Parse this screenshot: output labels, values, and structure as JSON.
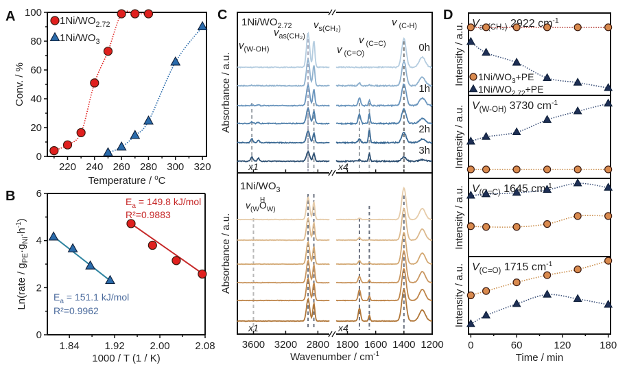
{
  "figure": {
    "panels": [
      "A",
      "B",
      "C",
      "D"
    ]
  },
  "chart_data": [
    {
      "panel": "A",
      "type": "scatter",
      "xlabel": "Temperature / °C",
      "ylabel": "Conv. / %",
      "xlim": [
        205,
        323
      ],
      "ylim": [
        0,
        100
      ],
      "xticks": [
        220,
        240,
        260,
        280,
        300,
        320
      ],
      "yticks": [
        0,
        20,
        40,
        60,
        80,
        100
      ],
      "legend_position": "top-left",
      "series": [
        {
          "name": "1Ni/WO2.72",
          "label_main": "1Ni/WO",
          "label_sub": "2.72",
          "marker": "circle",
          "color": "#e0201e",
          "line": "dotted",
          "x": [
            210,
            220,
            230,
            240,
            250,
            260,
            270,
            280
          ],
          "y": [
            4,
            8,
            16.5,
            51,
            73,
            99,
            99,
            99
          ]
        },
        {
          "name": "1Ni/WO3",
          "label_main": "1Ni/WO",
          "label_sub": "3",
          "marker": "triangle",
          "color": "#2a6bab",
          "line": "dotted",
          "x": [
            250,
            260,
            270,
            280,
            300,
            320
          ],
          "y": [
            2.5,
            6.5,
            14.5,
            24.5,
            65.5,
            90
          ]
        }
      ]
    },
    {
      "panel": "B",
      "type": "scatter",
      "xlabel": "1000 / T (1 / K)",
      "ylabel": "Ln(rate / gPE·gNi·h-1)",
      "xlim": [
        1.801,
        2.08
      ],
      "ylim": [
        0,
        6
      ],
      "xticks": [
        1.84,
        1.92,
        2.0,
        2.08
      ],
      "xticklabels": [
        "1.84",
        "1.92",
        "2.00",
        "2.08"
      ],
      "yticks": [
        0,
        2,
        4,
        6
      ],
      "series": [
        {
          "name": "1Ni/WO3",
          "marker": "triangle",
          "color": "#2a6bab",
          "line_color": "#2f84a0",
          "x": [
            1.812,
            1.846,
            1.877,
            1.912
          ],
          "y": [
            4.15,
            3.65,
            2.92,
            2.3
          ],
          "fit": {
            "x": [
              1.812,
              1.912
            ],
            "y": [
              4.17,
              2.3
            ]
          },
          "annotation": {
            "Ea": "E",
            "Ea_sub": "a",
            "Ea_value": " = 151.1 kJ/mol",
            "R2": "R²=0.9962",
            "color": "#4a6a9c"
          }
        },
        {
          "name": "1Ni/WO2.72",
          "marker": "circle",
          "color": "#e0201e",
          "line_color": "#c62828",
          "x": [
            1.949,
            1.987,
            2.029,
            2.075
          ],
          "y": [
            4.72,
            3.8,
            3.15,
            2.58
          ],
          "fit": {
            "x": [
              1.949,
              2.077
            ],
            "y": [
              4.72,
              2.57
            ]
          },
          "annotation": {
            "Ea": "E",
            "Ea_sub": "a",
            "Ea_value": " = 149.8 kJ/mol",
            "R2": "R²=0.9883",
            "color": "#c62828"
          }
        }
      ]
    },
    {
      "panel": "C",
      "type": "line",
      "xlabel": "Wavenumber / cm-1",
      "ylabel": "Absorbance / a.u.",
      "x_segments": [
        {
          "range": [
            3800,
            2650
          ],
          "scale_label": "x1",
          "ticks": [
            3600,
            3200,
            2800
          ]
        },
        {
          "range": [
            1880,
            1200
          ],
          "scale_label": "x4",
          "ticks": [
            1800,
            1600,
            1400,
            1200
          ]
        }
      ],
      "xticklabels": [
        "3600",
        "3200",
        "2800",
        "1800",
        "1600",
        "1400",
        "1200"
      ],
      "subplots": [
        {
          "title": "1Ni/WO2.72",
          "title_main": "1Ni/WO",
          "title_sub": "2.72",
          "time_labels": [
            "0h",
            "1h",
            "2h",
            "3h"
          ],
          "n_spectra": 6,
          "colors": [
            "#b5cde0",
            "#8fb1ce",
            "#6a95bd",
            "#4f7faa",
            "#3c6a94",
            "#2d4f72"
          ],
          "marker_lines": [
            3620,
            2922,
            2850,
            1715,
            1645,
            1400
          ],
          "annotations": [
            {
              "nu": "v",
              "sub": "(W-OH)",
              "x": 3620
            },
            {
              "nu": "v",
              "sub": "as(CH₂)",
              "x": 2922
            },
            {
              "nu": "v",
              "sub": "s(CH₂)",
              "x": 2850
            },
            {
              "nu": "v",
              "sub": "(C=O)",
              "x": 1715
            },
            {
              "nu": "v",
              "sub": "(C=C)",
              "x": 1645
            },
            {
              "nu": "v",
              "sub": "(C-H)",
              "x": 1400
            }
          ],
          "peaks_ch2": [
            1.0,
            0.78,
            0.6,
            0.45,
            0.35,
            0.28
          ],
          "peaks_oh": [
            0.0,
            0.02,
            0.04,
            0.08,
            0.18,
            0.2
          ],
          "peaks_co": [
            0.0,
            0.1,
            0.3,
            0.35,
            0.15,
            0.05
          ],
          "peaks_cc": [
            0.0,
            0.05,
            0.2,
            0.4,
            0.5,
            0.28
          ],
          "peaks_ch": [
            1.0,
            0.85,
            0.75,
            0.5,
            0.35,
            0.15
          ]
        },
        {
          "title": "1Ni/WO3",
          "title_main": "1Ni/WO",
          "title_sub": "3",
          "n_spectra": 6,
          "colors": [
            "#e6ccaa",
            "#dcb98e",
            "#d3a873",
            "#c99660",
            "#be854a",
            "#b07638"
          ],
          "marker_lines": [
            3600,
            2922,
            2850,
            1715,
            1645,
            1400
          ],
          "annotations": [
            {
              "nu": "v",
              "sub": "(W-O(H)-W)",
              "x": 3600
            }
          ],
          "peaks_ch2": [
            1.0,
            1.0,
            1.0,
            1.0,
            1.0,
            1.0
          ],
          "peaks_co": [
            0.05,
            0.08,
            0.12,
            0.22,
            0.38,
            0.45
          ],
          "peaks_cc": [
            0.0,
            0.02,
            0.05,
            0.1,
            0.16,
            0.2
          ],
          "peaks_ch": [
            1.0,
            1.0,
            1.0,
            1.0,
            1.0,
            1.0
          ]
        }
      ]
    },
    {
      "panel": "D",
      "type": "scatter",
      "xlabel": "Time / min",
      "ylabel": "Intensity / a.u.",
      "xlim": [
        -3,
        183
      ],
      "xticks": [
        0,
        60,
        120,
        180
      ],
      "legend": [
        {
          "label": "1Ni/WO3+PE",
          "main": "1Ni/WO",
          "sub": "3",
          "tail": "+PE",
          "marker": "circle",
          "color": "#d98a4e"
        },
        {
          "label": "1Ni/WO2.72+PE",
          "main": "1Ni/WO",
          "sub": "2.72",
          "tail": "+PE",
          "marker": "triangle",
          "color": "#1e2f55"
        }
      ],
      "subplots": [
        {
          "title": "Vas(CH2) 2922 cm-1",
          "t_main": "V",
          "t_sub": "as(CH₂)",
          "t_rest": " 2922 cm",
          "t_sup": "-1",
          "x": [
            0,
            20,
            60,
            100,
            140,
            180
          ],
          "wo3": [
            0.85,
            0.85,
            0.85,
            0.85,
            0.85,
            0.85
          ],
          "wo272": [
            0.66,
            0.52,
            0.39,
            0.19,
            0.13,
            0.06
          ]
        },
        {
          "title": "V(W-OH) 3730 cm-1",
          "t_main": "V",
          "t_sub": "(W-OH)",
          "t_rest": " 3730 cm",
          "t_sup": "-1",
          "x": [
            0,
            20,
            60,
            100,
            140,
            180
          ],
          "wo3": [
            0.08,
            0.08,
            0.08,
            0.08,
            0.08,
            0.08
          ],
          "wo272": [
            0.44,
            0.5,
            0.56,
            0.72,
            0.83,
            0.93
          ]
        },
        {
          "title": "V(C=C) 1645 cm-1",
          "t_main": "V",
          "t_sub": "(C=C)",
          "t_rest": " 1645 cm",
          "t_sup": "-1",
          "x": [
            0,
            20,
            60,
            100,
            140,
            180
          ],
          "wo3": [
            0.38,
            0.37,
            0.37,
            0.41,
            0.52,
            0.52
          ],
          "wo272": [
            0.8,
            0.82,
            0.84,
            0.88,
            0.97,
            0.91
          ]
        },
        {
          "title": "V(C=O) 1715 cm-1",
          "t_main": "V",
          "t_sub": "(C=O)",
          "t_rest": " 1715 cm",
          "t_sup": "-1",
          "x": [
            0,
            20,
            60,
            100,
            140,
            180
          ],
          "wo3": [
            0.5,
            0.56,
            0.68,
            0.78,
            0.86,
            0.98
          ],
          "wo272": [
            0.1,
            0.22,
            0.38,
            0.51,
            0.45,
            0.37
          ]
        }
      ]
    }
  ]
}
